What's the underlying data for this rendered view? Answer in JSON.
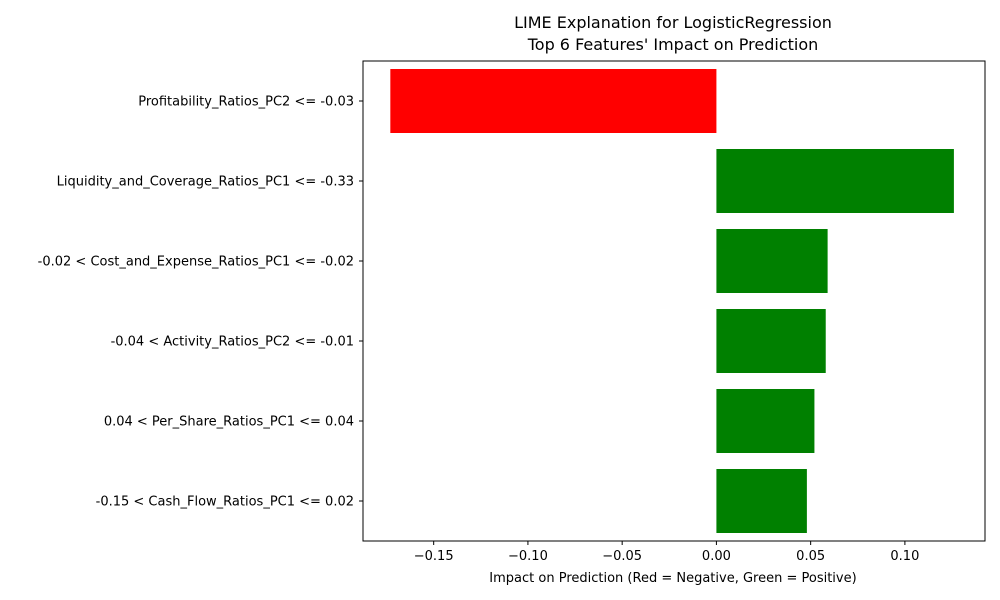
{
  "chart_data": {
    "type": "bar",
    "orientation": "horizontal",
    "title": "LIME Explanation for LogisticRegression",
    "subtitle": "Top 6 Features' Impact on Prediction",
    "xlabel": "Impact on Prediction (Red = Negative, Green = Positive)",
    "ylabel": "",
    "xlim": [
      -0.1875,
      0.1425
    ],
    "xticks": [
      -0.15,
      -0.1,
      -0.05,
      0.0,
      0.05,
      0.1
    ],
    "xtick_labels": [
      "−0.15",
      "−0.10",
      "−0.05",
      "0.00",
      "0.05",
      "0.10"
    ],
    "grid": false,
    "categories": [
      "Profitability_Ratios_PC2 <= -0.03",
      "Liquidity_and_Coverage_Ratios_PC1 <= -0.33",
      "-0.02 < Cost_and_Expense_Ratios_PC1 <= -0.02",
      "-0.04 < Activity_Ratios_PC2 <= -0.01",
      "0.04 < Per_Share_Ratios_PC1 <= 0.04",
      "-0.15 < Cash_Flow_Ratios_PC1 <= 0.02"
    ],
    "values": [
      -0.173,
      0.126,
      0.059,
      0.058,
      0.052,
      0.048
    ],
    "colors": {
      "negative": "#ff0000",
      "positive": "#008000"
    }
  }
}
